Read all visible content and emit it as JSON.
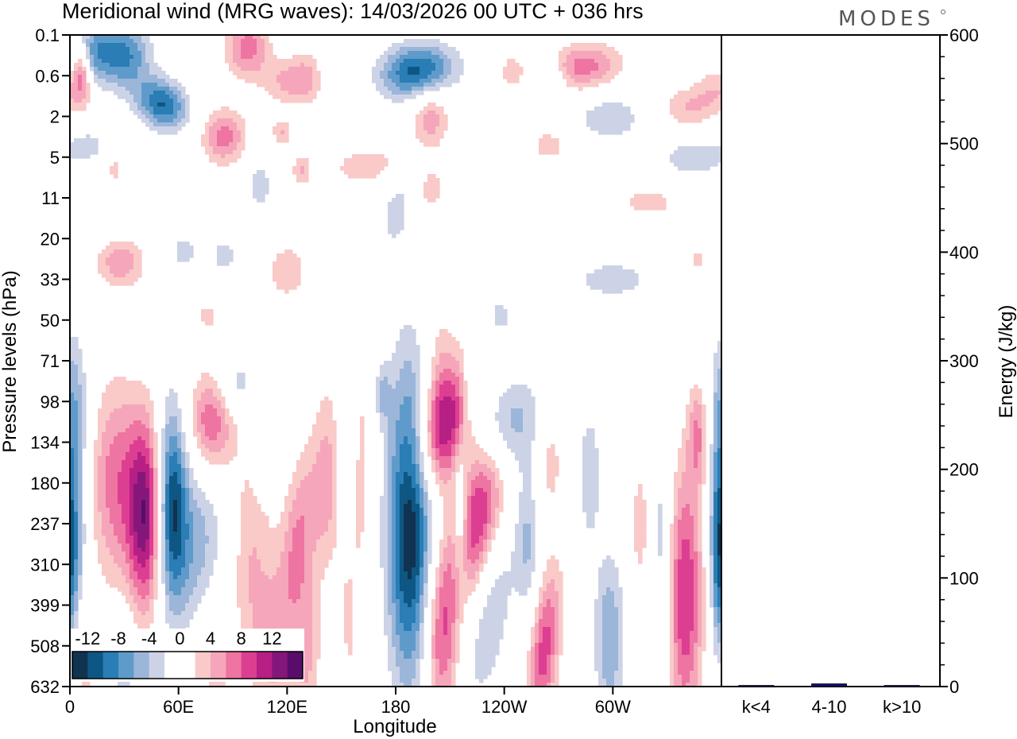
{
  "chart_data": [
    {
      "type": "heatmap",
      "title": "Meridional wind (MRG waves):  14/03/2026  00 UTC  + 036 hrs",
      "xlabel": "Longitude",
      "ylabel": "Pressure levels (hPa)",
      "x_ticks": [
        {
          "lon": 0,
          "label": "0"
        },
        {
          "lon": 60,
          "label": "60E"
        },
        {
          "lon": 120,
          "label": "120E"
        },
        {
          "lon": 180,
          "label": "180"
        },
        {
          "lon": 240,
          "label": "120W"
        },
        {
          "lon": 300,
          "label": "60W"
        }
      ],
      "xlim": [
        0,
        360
      ],
      "y_levels": [
        "0.1",
        "0.6",
        "2",
        "5",
        "11",
        "20",
        "33",
        "50",
        "71",
        "98",
        "134",
        "180",
        "237",
        "310",
        "399",
        "508",
        "632"
      ],
      "colorbar": {
        "labels": [
          "-12",
          "-8",
          "-4",
          "0",
          "4",
          "8",
          "12"
        ],
        "colors": [
          "#0f3350",
          "#0e5784",
          "#2a7db5",
          "#5f9bca",
          "#9bb6d9",
          "#cdd3e6",
          "#ffffff",
          "#ffffff",
          "#f9cac8",
          "#f6a6ba",
          "#ee74a1",
          "#dc3f92",
          "#b61f84",
          "#86177a",
          "#5a0c6b"
        ]
      },
      "blobs": [
        {
          "lon": 14,
          "lev": 0.4,
          "sx": 8,
          "sy": 0.55,
          "amp": -7,
          "tilt": 0.1
        },
        {
          "lon": 31,
          "lev": 0.5,
          "sx": 10,
          "sy": 0.6,
          "amp": -9,
          "tilt": 0.05
        },
        {
          "lon": 51,
          "lev": 1.7,
          "sx": 10,
          "sy": 0.45,
          "amp": -11,
          "tilt": -0.2
        },
        {
          "lon": 7,
          "lev": 1.2,
          "sx": 4,
          "sy": 0.5,
          "amp": 4.5,
          "tilt": 0
        },
        {
          "lon": 6,
          "lev": 0.8,
          "sx": 3,
          "sy": 0.4,
          "amp": 5,
          "tilt": 0
        },
        {
          "lon": 85,
          "lev": 2.5,
          "sx": 9,
          "sy": 0.5,
          "amp": 8,
          "tilt": 0
        },
        {
          "lon": 98,
          "lev": 0.3,
          "sx": 9,
          "sy": 0.55,
          "amp": 8,
          "tilt": 0
        },
        {
          "lon": 127,
          "lev": 1.1,
          "sx": 13,
          "sy": 0.45,
          "amp": 7,
          "tilt": 0.15
        },
        {
          "lon": 142,
          "lev": 1.0,
          "sx": 4,
          "sy": 0.3,
          "amp": -4,
          "tilt": 0
        },
        {
          "lon": 192,
          "lev": 0.9,
          "sx": 15,
          "sy": 0.5,
          "amp": -12,
          "tilt": 0.1
        },
        {
          "lon": 199,
          "lev": 2.0,
          "sx": 8,
          "sy": 0.6,
          "amp": 6.5,
          "tilt": 0
        },
        {
          "lon": 244,
          "lev": 0.9,
          "sx": 5,
          "sy": 0.35,
          "amp": 4,
          "tilt": 0
        },
        {
          "lon": 267,
          "lev": 1.2,
          "sx": 5,
          "sy": 0.4,
          "amp": -5,
          "tilt": 0
        },
        {
          "lon": 284,
          "lev": 0.8,
          "sx": 16,
          "sy": 0.45,
          "amp": 8,
          "tilt": 0.1
        },
        {
          "lon": 298,
          "lev": 2.0,
          "sx": 16,
          "sy": 0.5,
          "amp": -4.5,
          "tilt": 0
        },
        {
          "lon": 341,
          "lev": 1.8,
          "sx": 12,
          "sy": 0.4,
          "amp": 5,
          "tilt": 0
        },
        {
          "lon": 357,
          "lev": 1.3,
          "sx": 8,
          "sy": 0.4,
          "amp": 4,
          "tilt": 0
        },
        {
          "lon": 10,
          "lev": 2.7,
          "sx": 7,
          "sy": 0.25,
          "amp": -4,
          "tilt": 0
        },
        {
          "lon": 25,
          "lev": 3.3,
          "sx": 3,
          "sy": 0.25,
          "amp": 4,
          "tilt": 0
        },
        {
          "lon": 117,
          "lev": 2.4,
          "sx": 4,
          "sy": 0.25,
          "amp": 5,
          "tilt": 0
        },
        {
          "lon": 128,
          "lev": 3.3,
          "sx": 4,
          "sy": 0.3,
          "amp": 5,
          "tilt": 0
        },
        {
          "lon": 163,
          "lev": 3.2,
          "sx": 14,
          "sy": 0.35,
          "amp": 4.5,
          "tilt": 0.15
        },
        {
          "lon": 200,
          "lev": 3.8,
          "sx": 5,
          "sy": 0.35,
          "amp": 4.5,
          "tilt": 0
        },
        {
          "lon": 265,
          "lev": 2.7,
          "sx": 8,
          "sy": 0.3,
          "amp": 4.5,
          "tilt": 0
        },
        {
          "lon": 345,
          "lev": 3.0,
          "sx": 14,
          "sy": 0.4,
          "amp": -4.5,
          "tilt": 0
        },
        {
          "lon": 105,
          "lev": 3.7,
          "sx": 5,
          "sy": 0.45,
          "amp": -4.5,
          "tilt": 0
        },
        {
          "lon": 180,
          "lev": 4.4,
          "sx": 5,
          "sy": 0.55,
          "amp": -4.5,
          "tilt": 0.3
        },
        {
          "lon": 320,
          "lev": 4.1,
          "sx": 12,
          "sy": 0.25,
          "amp": 4.5,
          "tilt": 0
        },
        {
          "lon": 28,
          "lev": 5.6,
          "sx": 10,
          "sy": 0.45,
          "amp": 6.5,
          "tilt": 0
        },
        {
          "lon": 63,
          "lev": 5.3,
          "sx": 5,
          "sy": 0.3,
          "amp": -4.5,
          "tilt": 0
        },
        {
          "lon": 85,
          "lev": 5.4,
          "sx": 5,
          "sy": 0.3,
          "amp": -4.5,
          "tilt": 0
        },
        {
          "lon": 120,
          "lev": 5.8,
          "sx": 8,
          "sy": 0.5,
          "amp": 5,
          "tilt": 0
        },
        {
          "lon": 300,
          "lev": 6.0,
          "sx": 16,
          "sy": 0.35,
          "amp": -4.5,
          "tilt": 0
        },
        {
          "lon": 347,
          "lev": 5.5,
          "sx": 3,
          "sy": 0.2,
          "amp": 4,
          "tilt": 0
        },
        {
          "lon": 76,
          "lev": 6.9,
          "sx": 4,
          "sy": 0.25,
          "amp": 4,
          "tilt": 0
        },
        {
          "lon": 238,
          "lev": 6.9,
          "sx": 5,
          "sy": 0.3,
          "amp": -4.5,
          "tilt": 0
        },
        {
          "lon": 2,
          "lev": 9.0,
          "sx": 6,
          "sy": 1.3,
          "amp": -6,
          "tilt": 0
        },
        {
          "lon": 2,
          "lev": 12.5,
          "sx": 5,
          "sy": 1.8,
          "amp": -9,
          "tilt": 0
        },
        {
          "lon": 25,
          "lev": 11.0,
          "sx": 10,
          "sy": 1.8,
          "amp": 8,
          "tilt": 0
        },
        {
          "lon": 42,
          "lev": 11.8,
          "sx": 7,
          "sy": 1.7,
          "amp": 14,
          "tilt": 0
        },
        {
          "lon": 56,
          "lev": 11.5,
          "sx": 6,
          "sy": 1.8,
          "amp": -12,
          "tilt": 0
        },
        {
          "lon": 70,
          "lev": 12.5,
          "sx": 12,
          "sy": 1.5,
          "amp": -6,
          "tilt": 0
        },
        {
          "lon": 78,
          "lev": 9.5,
          "sx": 9,
          "sy": 0.9,
          "amp": 9,
          "tilt": 0
        },
        {
          "lon": 92,
          "lev": 8.6,
          "sx": 8,
          "sy": 0.5,
          "amp": -5,
          "tilt": 0
        },
        {
          "lon": 100,
          "lev": 12.8,
          "sx": 9,
          "sy": 2.0,
          "amp": 5,
          "tilt": 0
        },
        {
          "lon": 105,
          "lev": 10.2,
          "sx": 3,
          "sy": 0.7,
          "amp": -4.5,
          "tilt": 0
        },
        {
          "lon": 126,
          "lev": 12.4,
          "sx": 7,
          "sy": 1.6,
          "amp": 7,
          "tilt": 0.5
        },
        {
          "lon": 143,
          "lev": 11.0,
          "sx": 6,
          "sy": 1.8,
          "amp": 5.5,
          "tilt": 0
        },
        {
          "lon": 153,
          "lev": 11.0,
          "sx": 4,
          "sy": 1.5,
          "amp": -4.5,
          "tilt": 0
        },
        {
          "lon": 160,
          "lev": 11.3,
          "sx": 4,
          "sy": 2.8,
          "amp": 4.5,
          "tilt": 0
        },
        {
          "lon": 173,
          "lev": 8.8,
          "sx": 3,
          "sy": 0.5,
          "amp": -4.5,
          "tilt": 0
        },
        {
          "lon": 188,
          "lev": 12.0,
          "sx": 9,
          "sy": 2.8,
          "amp": -15,
          "tilt": 0
        },
        {
          "lon": 208,
          "lev": 9.6,
          "sx": 11,
          "sy": 1.1,
          "amp": 11,
          "tilt": 0.5
        },
        {
          "lon": 226,
          "lev": 11.8,
          "sx": 10,
          "sy": 1.6,
          "amp": 12,
          "tilt": 0.6
        },
        {
          "lon": 204,
          "lev": 8.5,
          "sx": 7,
          "sy": 1.5,
          "amp": 4.5,
          "tilt": 0
        },
        {
          "lon": 240,
          "lev": 9.6,
          "sx": 13,
          "sy": 0.9,
          "amp": -8,
          "tilt": 0.2
        },
        {
          "lon": 221,
          "lev": 8.7,
          "sx": 3,
          "sy": 0.6,
          "amp": -4.5,
          "tilt": 0
        },
        {
          "lon": 216,
          "lev": 12.0,
          "sx": 3,
          "sy": 1.3,
          "amp": -6,
          "tilt": 0
        },
        {
          "lon": 205,
          "lev": 14.8,
          "sx": 7,
          "sy": 1.6,
          "amp": 9,
          "tilt": 0
        },
        {
          "lon": 232,
          "lev": 14.0,
          "sx": 9,
          "sy": 1.8,
          "amp": -5.5,
          "tilt": 0.6
        },
        {
          "lon": 253,
          "lev": 12.5,
          "sx": 5,
          "sy": 1.3,
          "amp": -5,
          "tilt": 0
        },
        {
          "lon": 262,
          "lev": 15.1,
          "sx": 6,
          "sy": 1.5,
          "amp": 10,
          "tilt": 0.5
        },
        {
          "lon": 265,
          "lev": 10.5,
          "sx": 5,
          "sy": 0.8,
          "amp": 4.5,
          "tilt": 0
        },
        {
          "lon": 287,
          "lev": 10.8,
          "sx": 5,
          "sy": 1.3,
          "amp": -4.5,
          "tilt": 0
        },
        {
          "lon": 298,
          "lev": 14.8,
          "sx": 6,
          "sy": 1.5,
          "amp": -7,
          "tilt": 0
        },
        {
          "lon": 315,
          "lev": 12.0,
          "sx": 3,
          "sy": 1.0,
          "amp": 5,
          "tilt": 0
        },
        {
          "lon": 327,
          "lev": 12.6,
          "sx": 4,
          "sy": 2.3,
          "amp": -4.5,
          "tilt": 0
        },
        {
          "lon": 340,
          "lev": 13.8,
          "sx": 7,
          "sy": 2.3,
          "amp": 11,
          "tilt": 0
        },
        {
          "lon": 347,
          "lev": 9.8,
          "sx": 4,
          "sy": 0.9,
          "amp": 6.5,
          "tilt": 0
        },
        {
          "lon": 358,
          "lev": 12.5,
          "sx": 3,
          "sy": 1.8,
          "amp": -6.5,
          "tilt": 0
        },
        {
          "lon": 131,
          "lev": 15.3,
          "sx": 6,
          "sy": 1.5,
          "amp": 5,
          "tilt": 0
        },
        {
          "lon": 152,
          "lev": 14.5,
          "sx": 4,
          "sy": 1.6,
          "amp": 4.5,
          "tilt": 0
        },
        {
          "lon": 162,
          "lev": 15.0,
          "sx": 3,
          "sy": 1.4,
          "amp": -4.5,
          "tilt": 0
        },
        {
          "lon": 147,
          "lev": 15.5,
          "sx": 4,
          "sy": 1.5,
          "amp": -4.5,
          "tilt": 0
        },
        {
          "lon": 8,
          "lev": 15.5,
          "sx": 4,
          "sy": 1.5,
          "amp": 4.5,
          "tilt": 0
        },
        {
          "lon": 30,
          "lev": 15.8,
          "sx": 5,
          "sy": 1.0,
          "amp": -4.5,
          "tilt": 0
        },
        {
          "lon": 80,
          "lev": 15.3,
          "sx": 6,
          "sy": 1.2,
          "amp": 4.5,
          "tilt": 0
        },
        {
          "lon": 112,
          "lev": 15.2,
          "sx": 8,
          "sy": 1.3,
          "amp": 4.5,
          "tilt": 0
        }
      ]
    },
    {
      "type": "bar",
      "ylabel": "Energy (J/kg)",
      "ylim": [
        0,
        600
      ],
      "y_ticks": [
        "0",
        "100",
        "200",
        "300",
        "400",
        "500",
        "600"
      ],
      "categories": [
        "k<4",
        "4-10",
        "k>10"
      ],
      "values": [
        0.6,
        2.5,
        0.4
      ],
      "bar_colors": [
        "#3a3a8a",
        "#0d0d7a",
        "#3a3a8a"
      ]
    }
  ],
  "brand": "MODES"
}
